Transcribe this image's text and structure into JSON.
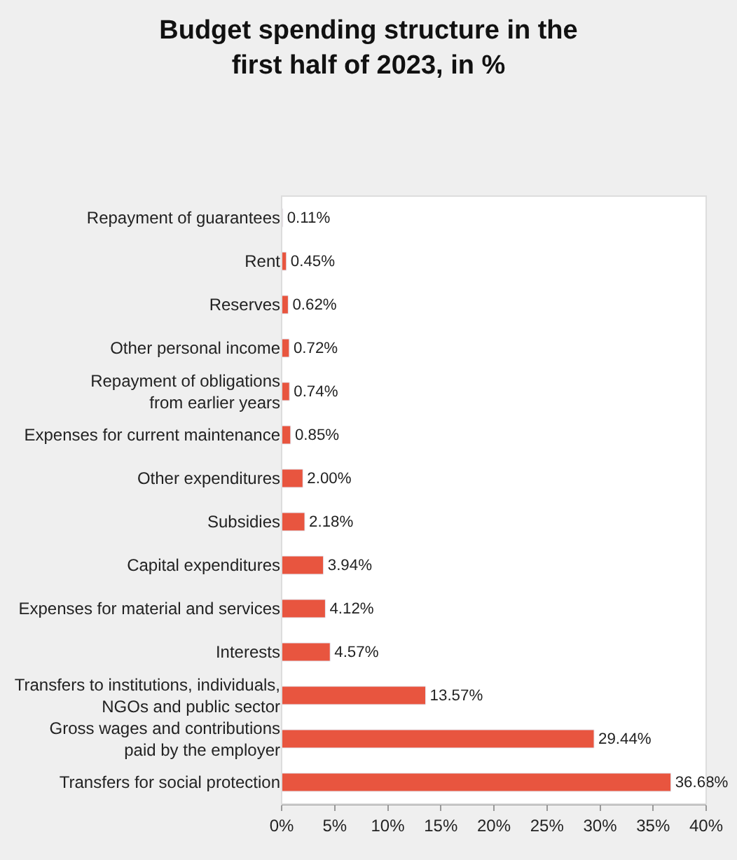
{
  "chart_data": {
    "type": "bar",
    "orientation": "horizontal",
    "title": "Budget spending structure in the\nfirst half of 2023, in %",
    "categories": [
      "Repayment of guarantees",
      "Rent",
      "Reserves",
      "Other personal income",
      "Repayment of obligations\nfrom earlier years",
      "Expenses for current maintenance",
      "Other expenditures",
      "Subsidies",
      "Capital expenditures",
      "Expenses for material and services",
      "Interests",
      "Transfers to institutions, individuals,\nNGOs and public sector",
      "Gross wages and contributions\npaid by the employer",
      "Transfers for social protection"
    ],
    "values": [
      0.11,
      0.45,
      0.62,
      0.72,
      0.74,
      0.85,
      2.0,
      2.18,
      3.94,
      4.12,
      4.57,
      13.57,
      29.44,
      36.68
    ],
    "value_labels": [
      "0.11%",
      "0.45%",
      "0.62%",
      "0.72%",
      "0.74%",
      "0.85%",
      "2.00%",
      "2.18%",
      "3.94%",
      "4.12%",
      "4.57%",
      "13.57%",
      "29.44%",
      "36.68%"
    ],
    "color": "#e8553f",
    "xlim": [
      0,
      40
    ],
    "xticks": [
      {
        "value": 0,
        "label": "0%"
      },
      {
        "value": 5,
        "label": "5%"
      },
      {
        "value": 10,
        "label": "10%"
      },
      {
        "value": 15,
        "label": "15%"
      },
      {
        "value": 20,
        "label": "20%"
      },
      {
        "value": 25,
        "label": "25%"
      },
      {
        "value": 30,
        "label": "30%"
      },
      {
        "value": 35,
        "label": "35%"
      },
      {
        "value": 40,
        "label": "40%"
      }
    ],
    "legend": false
  }
}
